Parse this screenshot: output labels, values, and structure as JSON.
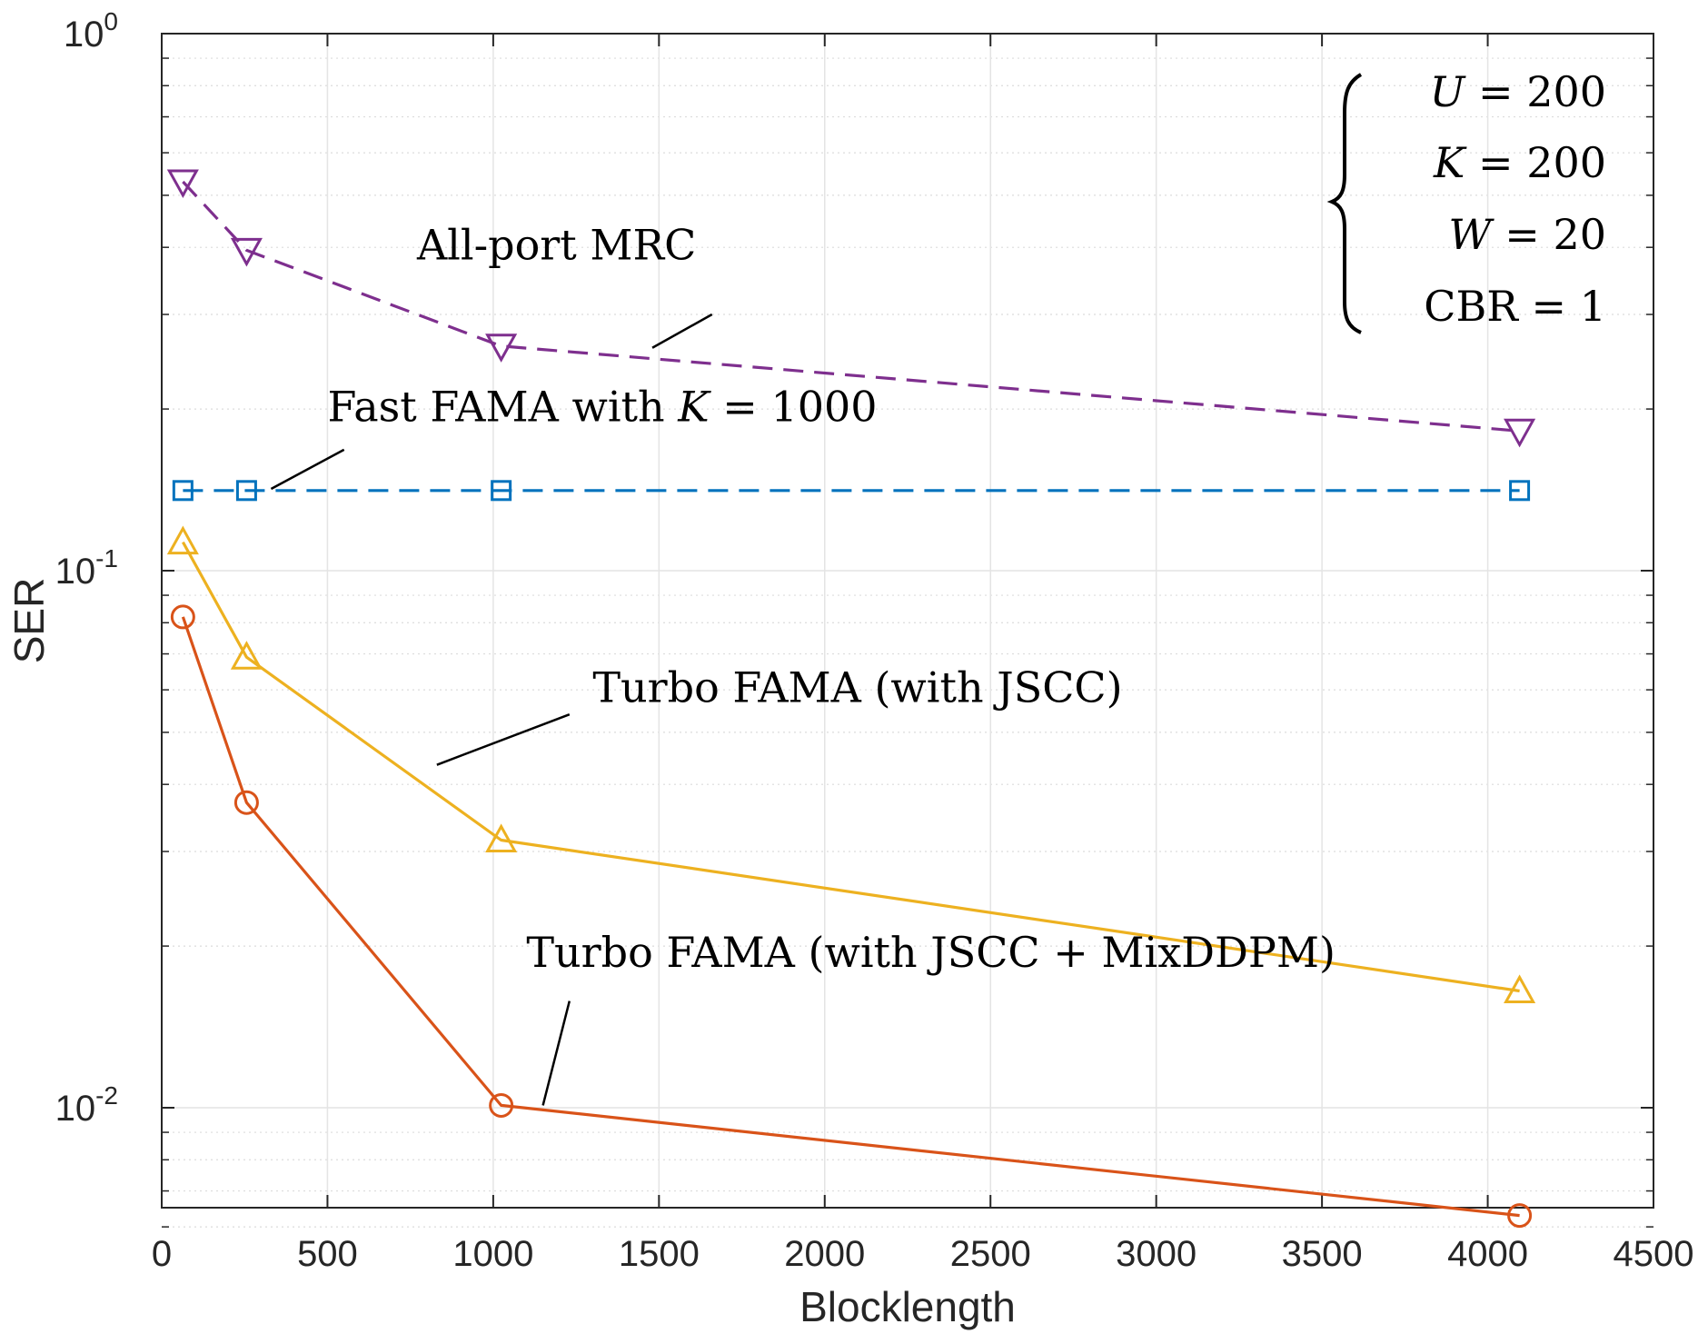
{
  "chart_data": {
    "type": "line",
    "title": "",
    "xlabel": "Blocklength",
    "ylabel": "SER",
    "xscale": "linear",
    "yscale": "log",
    "xlim": [
      0,
      4500
    ],
    "ylim": [
      0.006,
      1
    ],
    "grid": true,
    "x_ticks": [
      0,
      500,
      1000,
      1500,
      2000,
      2500,
      3000,
      3500,
      4000,
      4500
    ],
    "x_tick_labels": [
      "0",
      "500",
      "1000",
      "1500",
      "2000",
      "2500",
      "3000",
      "3500",
      "4000",
      "4500"
    ],
    "y_ticks": [
      {
        "value": 1,
        "base": "10",
        "exp": "0"
      },
      {
        "value": 0.1,
        "base": "10",
        "exp": "-1"
      },
      {
        "value": 0.01,
        "base": "10",
        "exp": "-2"
      }
    ],
    "series": [
      {
        "name": "All-port MRC",
        "color": "#7E2F8E",
        "line_style": "dashed",
        "marker": "triangle-down",
        "x": [
          64,
          256,
          1024,
          4096
        ],
        "y": [
          0.53,
          0.395,
          0.262,
          0.182
        ]
      },
      {
        "name": "Fast FAMA with K = 1000",
        "color": "#0072BD",
        "line_style": "dashed",
        "marker": "square",
        "x": [
          64,
          256,
          1024,
          4096
        ],
        "y": [
          0.141,
          0.141,
          0.141,
          0.141
        ]
      },
      {
        "name": "Turbo FAMA (with JSCC)",
        "color": "#EDB120",
        "line_style": "solid",
        "marker": "triangle-up",
        "x": [
          64,
          256,
          1024,
          4096
        ],
        "y": [
          0.113,
          0.069,
          0.0315,
          0.0165
        ]
      },
      {
        "name": "Turbo FAMA (with JSCC + MixDDPM)",
        "color": "#D95319",
        "line_style": "solid",
        "marker": "circle",
        "x": [
          64,
          256,
          1024,
          4096
        ],
        "y": [
          0.082,
          0.037,
          0.0101,
          0.0063
        ]
      }
    ],
    "annotations": [
      {
        "id": "mrc",
        "text": "All-port MRC",
        "text_at": [
          770,
          0.38
        ],
        "arrow_from": [
          1660,
          0.3
        ],
        "arrow_to": [
          1480,
          0.26
        ]
      },
      {
        "id": "fast",
        "text_pre": "Fast FAMA with ",
        "text_var": "K",
        "text_post": " = 1000",
        "text_at": [
          500,
          0.19
        ],
        "arrow_from": [
          550,
          0.168
        ],
        "arrow_to": [
          330,
          0.142
        ]
      },
      {
        "id": "jscc",
        "text": "Turbo FAMA (with JSCC)",
        "text_at": [
          1300,
          0.057
        ],
        "arrow_from": [
          1230,
          0.054
        ],
        "arrow_to": [
          830,
          0.0435
        ]
      },
      {
        "id": "mix",
        "text": "Turbo FAMA (with JSCC + MixDDPM)",
        "text_at": [
          1100,
          0.0183
        ],
        "arrow_from": [
          1230,
          0.0158
        ],
        "arrow_to": [
          1150,
          0.0101
        ]
      }
    ],
    "params_box": {
      "lines": [
        {
          "var": "U",
          "rest": " = 200"
        },
        {
          "var": "K",
          "rest": " = 200"
        },
        {
          "var": "W",
          "rest": " = 20"
        },
        {
          "var": "",
          "rest": "CBR = 1"
        }
      ]
    }
  }
}
